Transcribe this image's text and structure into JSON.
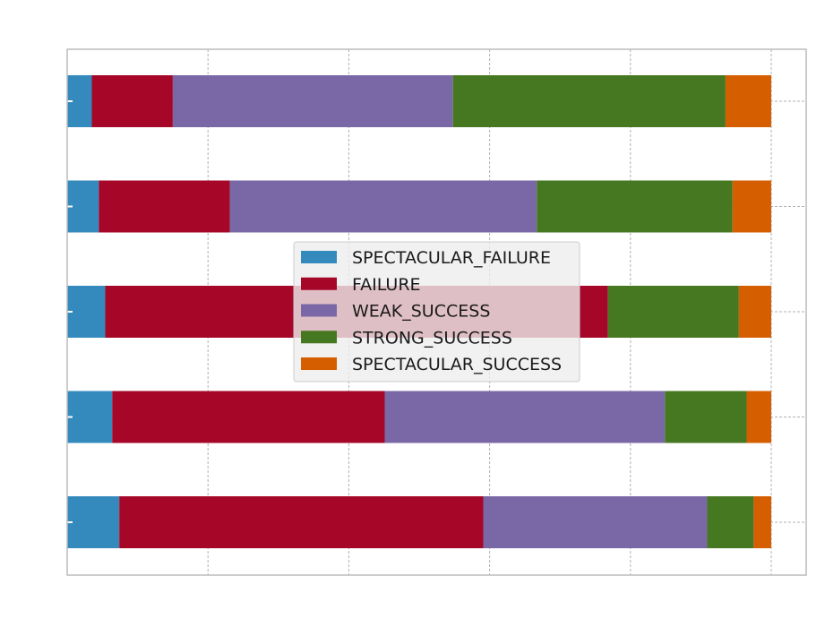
{
  "chart_data": {
    "type": "bar",
    "orientation": "horizontal",
    "stacked": true,
    "normalized": true,
    "title": "",
    "xlabel": "",
    "ylabel": "",
    "xlim": [
      0,
      1.05
    ],
    "grid": true,
    "legend": {
      "placement": "center"
    },
    "categories": [
      "",
      "",
      "",
      "",
      ""
    ],
    "series": [
      {
        "name": "SPECTACULAR_FAILURE",
        "color": "#348abd",
        "values": [
          0.074,
          0.064,
          0.054,
          0.045,
          0.035
        ]
      },
      {
        "name": "FAILURE",
        "color": "#a60628",
        "values": [
          0.517,
          0.387,
          0.714,
          0.186,
          0.115
        ]
      },
      {
        "name": "WEAK_SUCCESS",
        "color": "#7a68a6",
        "values": [
          0.318,
          0.398,
          0.0,
          0.436,
          0.398
        ]
      },
      {
        "name": "STRONG_SUCCESS",
        "color": "#467821",
        "values": [
          0.066,
          0.116,
          0.186,
          0.278,
          0.387
        ]
      },
      {
        "name": "SPECTACULAR_SUCCESS",
        "color": "#d55e00",
        "values": [
          0.025,
          0.035,
          0.046,
          0.055,
          0.065
        ]
      }
    ]
  }
}
